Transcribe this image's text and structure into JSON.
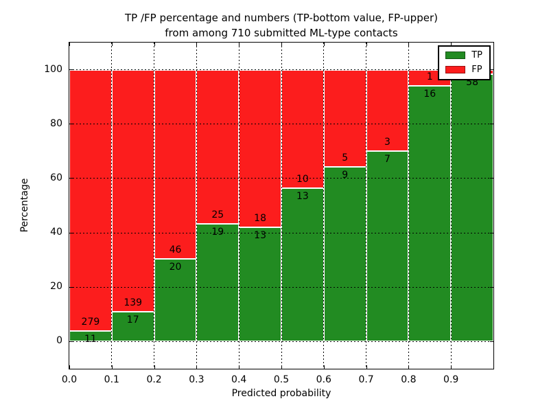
{
  "title": {
    "line1": "TP /FP percentage and numbers (TP-bottom value, FP-upper)",
    "line2": "from among 710 submitted ML-type contacts"
  },
  "axes": {
    "xlabel": "Predicted probability",
    "ylabel": "Percentage",
    "x_tick_labels": [
      "0.0",
      "0.1",
      "0.2",
      "0.3",
      "0.4",
      "0.5",
      "0.6",
      "0.7",
      "0.8",
      "0.9"
    ],
    "y_tick_labels": [
      "0",
      "20",
      "40",
      "60",
      "80",
      "100"
    ],
    "y_tick_values": [
      0,
      20,
      40,
      60,
      80,
      100
    ]
  },
  "legend": {
    "position": "upper right",
    "entries": [
      {
        "label": "TP",
        "color": "#228b22"
      },
      {
        "label": "FP",
        "color": "#fc1d1d"
      }
    ]
  },
  "colors": {
    "tp": "#228b22",
    "fp": "#fc1d1d",
    "background": "#ffffff",
    "grid": "#000000",
    "bar_edge": "#ffffff"
  },
  "chart_data": {
    "type": "bar",
    "stacked": true,
    "normalized_to_percent": true,
    "title": "TP /FP percentage and numbers (TP-bottom value, FP-upper) from among 710 submitted ML-type contacts",
    "xlabel": "Predicted probability",
    "ylabel": "Percentage",
    "categories": [
      "0.0",
      "0.1",
      "0.2",
      "0.3",
      "0.4",
      "0.5",
      "0.6",
      "0.7",
      "0.8",
      "0.9"
    ],
    "bin_width": 0.1,
    "series": [
      {
        "name": "TP",
        "counts": [
          11,
          17,
          20,
          19,
          13,
          13,
          9,
          7,
          16,
          58
        ]
      },
      {
        "name": "FP",
        "counts": [
          279,
          139,
          46,
          25,
          18,
          10,
          5,
          3,
          1,
          1
        ]
      }
    ],
    "tp_percent": [
      3.8,
      10.9,
      30.3,
      43.2,
      41.9,
      56.5,
      64.3,
      70.0,
      94.1,
      98.3
    ],
    "total_contacts": 710,
    "xlim": [
      0.0,
      1.0
    ],
    "ylim": [
      -10,
      110
    ],
    "grid": "dotted",
    "legend_position": "upper right"
  }
}
